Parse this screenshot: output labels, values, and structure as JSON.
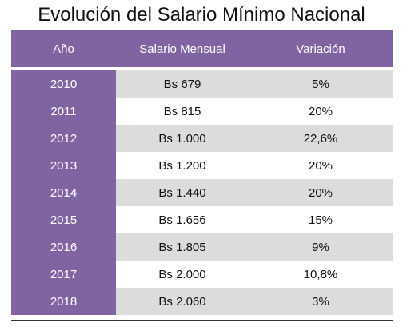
{
  "title": "Evolución del Salario Mínimo Nacional",
  "headers": [
    "Año",
    "Salario Mensual",
    "Variación"
  ],
  "rows": [
    {
      "year": "2010",
      "salary": "Bs 679",
      "variation": "5%"
    },
    {
      "year": "2011",
      "salary": "Bs 815",
      "variation": "20%"
    },
    {
      "year": "2012",
      "salary": "Bs 1.000",
      "variation": "22,6%"
    },
    {
      "year": "2013",
      "salary": "Bs 1.200",
      "variation": "20%"
    },
    {
      "year": "2014",
      "salary": "Bs 1.440",
      "variation": "20%"
    },
    {
      "year": "2015",
      "salary": "Bs 1.656",
      "variation": "15%"
    },
    {
      "year": "2016",
      "salary": "Bs 1.805",
      "variation": "9%"
    },
    {
      "year": "2017",
      "salary": "Bs 2.000",
      "variation": "10,8%"
    },
    {
      "year": "2018",
      "salary": "Bs 2.060",
      "variation": "3%"
    }
  ],
  "colors": {
    "accent": "#8064a2",
    "stripe": "#dcdcdc"
  }
}
